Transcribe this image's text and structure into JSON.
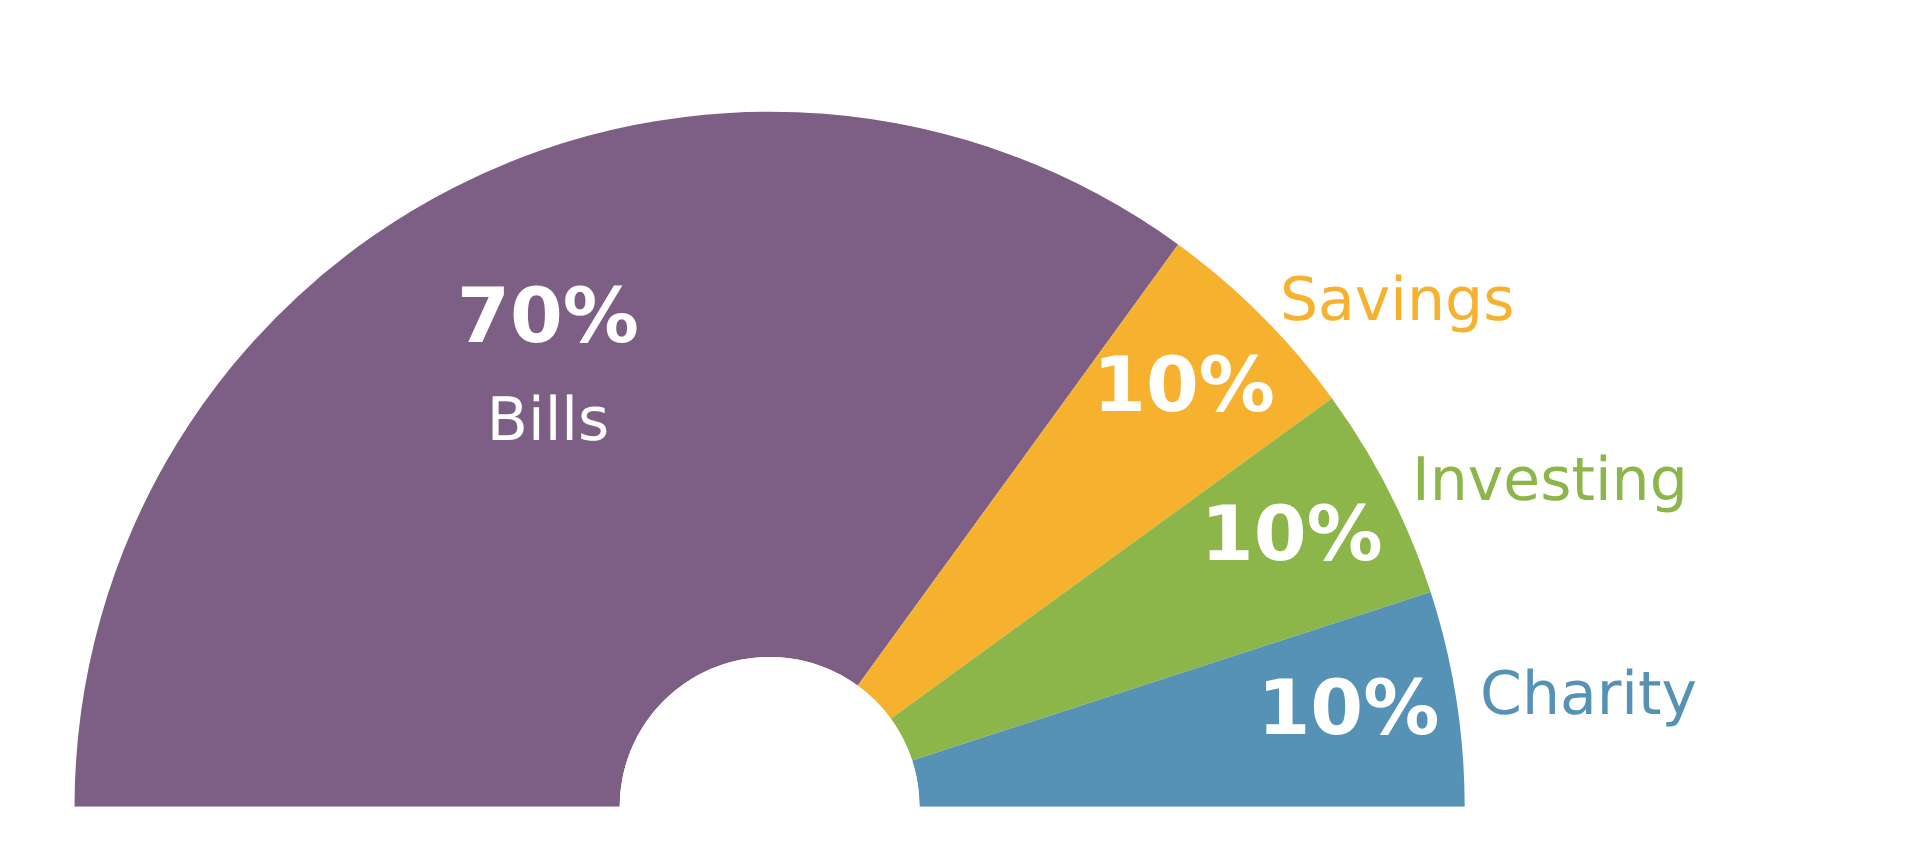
{
  "chart_data": {
    "type": "donut",
    "categories": [
      "Bills",
      "Savings",
      "Investing",
      "Charity"
    ],
    "values": [
      70,
      10,
      10,
      10
    ],
    "value_labels": [
      "70%",
      "10%",
      "10%",
      "10%"
    ],
    "colors": [
      "#7d5e84",
      "#f6b12e",
      "#8db64a",
      "#5592b5"
    ]
  }
}
